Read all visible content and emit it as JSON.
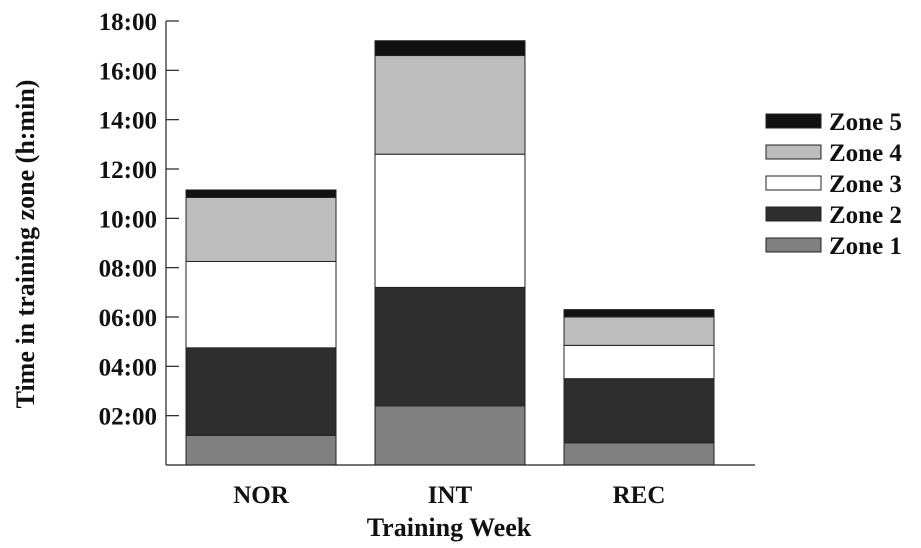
{
  "chart_data": {
    "type": "bar",
    "stacked": true,
    "categories": [
      "NOR",
      "INT",
      "REC"
    ],
    "series": [
      {
        "name": "Zone 1",
        "color": "#808080",
        "values": [
          1.2,
          2.4,
          0.9
        ]
      },
      {
        "name": "Zone 2",
        "color": "#2e2e2e",
        "values": [
          3.55,
          4.8,
          2.6
        ]
      },
      {
        "name": "Zone 3",
        "color": "#ffffff",
        "values": [
          3.5,
          5.4,
          1.35
        ]
      },
      {
        "name": "Zone 4",
        "color": "#bdbdbd",
        "values": [
          2.6,
          4.0,
          1.15
        ]
      },
      {
        "name": "Zone 5",
        "color": "#111111",
        "values": [
          0.3,
          0.6,
          0.3
        ]
      }
    ],
    "xlabel": "Training Week",
    "ylabel": "Time in training zone (h:min)",
    "ylim": [
      0,
      18
    ],
    "yticks": [
      {
        "value": 2,
        "label": "02:00"
      },
      {
        "value": 4,
        "label": "04:00"
      },
      {
        "value": 6,
        "label": "06:00"
      },
      {
        "value": 8,
        "label": "08:00"
      },
      {
        "value": 10,
        "label": "10:00"
      },
      {
        "value": 12,
        "label": "12:00"
      },
      {
        "value": 14,
        "label": "14:00"
      },
      {
        "value": 16,
        "label": "16:00"
      },
      {
        "value": 18,
        "label": "18:00"
      }
    ],
    "grid": false,
    "legend": {
      "position": "right",
      "order": [
        "Zone 5",
        "Zone 4",
        "Zone 3",
        "Zone 2",
        "Zone 1"
      ]
    }
  }
}
